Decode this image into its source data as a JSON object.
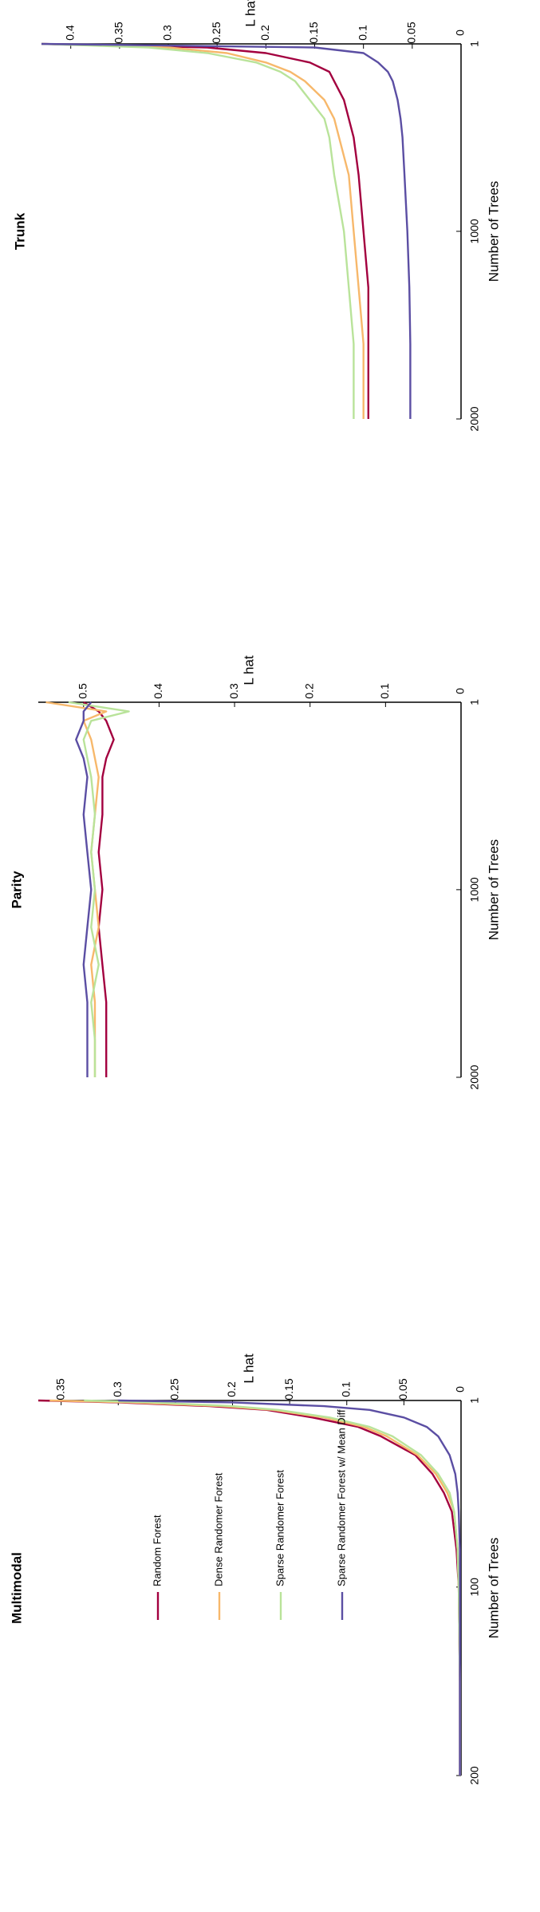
{
  "colors": {
    "random_forest": "#a3003f",
    "dense_randomer_forest": "#f7b86b",
    "sparse_randomer_forest": "#b9e39a",
    "sparse_randomer_forest_mean_diff": "#5b4ea3",
    "axis": "#000000"
  },
  "legend": {
    "placement": "right",
    "entries": [
      {
        "label": "Random Forest",
        "series_key": "random_forest"
      },
      {
        "label": "Dense Randomer Forest",
        "series_key": "dense_randomer_forest"
      },
      {
        "label": "Sparse Randomer Forest",
        "series_key": "sparse_randomer_forest"
      },
      {
        "label": "Sparse Randomer Forest w/ Mean Diff",
        "series_key": "sparse_randomer_forest_mean_diff"
      }
    ]
  },
  "chart_data": [
    {
      "type": "line",
      "title": "Trunk",
      "xlabel": "Number of Trees",
      "ylabel": "L hat",
      "xlim": [
        1,
        2000
      ],
      "ylim": [
        0,
        0.43
      ],
      "xticks": [
        1,
        1000,
        2000
      ],
      "xtick_labels": [
        "1",
        "1000",
        "2000"
      ],
      "yticks": [
        0,
        0.05,
        0.1,
        0.15,
        0.2,
        0.25,
        0.3,
        0.35,
        0.4
      ],
      "ytick_labels": [
        "0",
        "0.05",
        "0.1",
        "0.15",
        "0.2",
        "0.25",
        "0.3",
        "0.35",
        "0.4"
      ],
      "grid": false,
      "series": [
        {
          "key": "random_forest",
          "name": "Random Forest",
          "x": [
            1,
            20,
            50,
            100,
            150,
            200,
            300,
            400,
            500,
            700,
            1000,
            1300,
            1600,
            2000
          ],
          "y": [
            0.43,
            0.26,
            0.2,
            0.155,
            0.135,
            0.13,
            0.12,
            0.115,
            0.11,
            0.105,
            0.1,
            0.095,
            0.095,
            0.095
          ]
        },
        {
          "key": "dense_randomer_forest",
          "name": "Dense Randomer Forest",
          "x": [
            1,
            20,
            50,
            100,
            150,
            200,
            300,
            400,
            500,
            700,
            1000,
            1300,
            1600,
            2000
          ],
          "y": [
            0.43,
            0.3,
            0.24,
            0.2,
            0.175,
            0.16,
            0.14,
            0.13,
            0.125,
            0.115,
            0.11,
            0.105,
            0.1,
            0.1
          ]
        },
        {
          "key": "sparse_randomer_forest",
          "name": "Sparse Randomer Forest",
          "x": [
            1,
            20,
            50,
            100,
            150,
            200,
            300,
            400,
            500,
            700,
            1000,
            1300,
            1600,
            2000
          ],
          "y": [
            0.43,
            0.32,
            0.26,
            0.21,
            0.185,
            0.17,
            0.155,
            0.14,
            0.135,
            0.13,
            0.12,
            0.115,
            0.11,
            0.11
          ]
        },
        {
          "key": "sparse_randomer_forest_mean_diff",
          "name": "Sparse Randomer Forest w/ Mean Diff",
          "x": [
            1,
            20,
            50,
            100,
            150,
            200,
            300,
            400,
            500,
            700,
            1000,
            1300,
            1600,
            2000
          ],
          "y": [
            0.43,
            0.15,
            0.1,
            0.085,
            0.075,
            0.07,
            0.065,
            0.062,
            0.06,
            0.058,
            0.055,
            0.053,
            0.052,
            0.052
          ]
        }
      ]
    },
    {
      "type": "line",
      "title": "Parity",
      "xlabel": "Number of Trees",
      "ylabel": "L hat",
      "xlim": [
        1,
        2000
      ],
      "ylim": [
        0,
        0.56
      ],
      "xticks": [
        1,
        1000,
        2000
      ],
      "xtick_labels": [
        "1",
        "1000",
        "2000"
      ],
      "yticks": [
        0,
        0.1,
        0.2,
        0.3,
        0.4,
        0.5
      ],
      "ytick_labels": [
        "0",
        "0.1",
        "0.2",
        "0.3",
        "0.4",
        "0.5"
      ],
      "grid": false,
      "series": [
        {
          "key": "random_forest",
          "name": "Random Forest",
          "x": [
            1,
            50,
            100,
            200,
            300,
            400,
            600,
            800,
            1000,
            1200,
            1400,
            1600,
            1800,
            2000
          ],
          "y": [
            0.5,
            0.48,
            0.47,
            0.46,
            0.47,
            0.475,
            0.475,
            0.48,
            0.475,
            0.48,
            0.475,
            0.47,
            0.47,
            0.47
          ]
        },
        {
          "key": "dense_randomer_forest",
          "name": "Dense Randomer Forest",
          "x": [
            1,
            50,
            100,
            200,
            300,
            400,
            600,
            800,
            1000,
            1200,
            1400,
            1600,
            1800,
            2000
          ],
          "y": [
            0.55,
            0.47,
            0.5,
            0.49,
            0.485,
            0.48,
            0.485,
            0.49,
            0.485,
            0.48,
            0.49,
            0.485,
            0.485,
            0.485
          ]
        },
        {
          "key": "sparse_randomer_forest",
          "name": "Sparse Randomer Forest",
          "x": [
            1,
            50,
            100,
            200,
            300,
            400,
            600,
            800,
            1000,
            1200,
            1400,
            1600,
            1800,
            2000
          ],
          "y": [
            0.52,
            0.44,
            0.49,
            0.5,
            0.495,
            0.49,
            0.485,
            0.49,
            0.485,
            0.49,
            0.48,
            0.49,
            0.485,
            0.485
          ]
        },
        {
          "key": "sparse_randomer_forest_mean_diff",
          "name": "Sparse Randomer Forest w/ Mean Diff",
          "x": [
            1,
            50,
            100,
            200,
            300,
            400,
            600,
            800,
            1000,
            1200,
            1400,
            1600,
            1800,
            2000
          ],
          "y": [
            0.49,
            0.5,
            0.5,
            0.51,
            0.5,
            0.495,
            0.5,
            0.495,
            0.49,
            0.495,
            0.5,
            0.495,
            0.495,
            0.495
          ]
        }
      ]
    },
    {
      "type": "line",
      "title": "Multimodal",
      "xlabel": "Number of Trees",
      "ylabel": "L hat",
      "xlim": [
        1,
        200
      ],
      "ylim": [
        0,
        0.37
      ],
      "xticks": [
        1,
        100,
        200
      ],
      "xtick_labels": [
        "1",
        "100",
        "200"
      ],
      "yticks": [
        0,
        0.05,
        0.1,
        0.15,
        0.2,
        0.25,
        0.3,
        0.35
      ],
      "ytick_labels": [
        "0",
        "0.05",
        "0.1",
        "0.15",
        "0.2",
        "0.25",
        "0.3",
        "0.35"
      ],
      "grid": false,
      "series": [
        {
          "key": "random_forest",
          "name": "Random Forest",
          "x": [
            1,
            2,
            4,
            6,
            10,
            15,
            20,
            30,
            40,
            50,
            60,
            80,
            100,
            150,
            200
          ],
          "y": [
            0.37,
            0.3,
            0.22,
            0.17,
            0.13,
            0.09,
            0.07,
            0.04,
            0.025,
            0.015,
            0.008,
            0.004,
            0.002,
            0.001,
            0.001
          ]
        },
        {
          "key": "dense_randomer_forest",
          "name": "Dense Randomer Forest",
          "x": [
            1,
            2,
            4,
            6,
            10,
            15,
            20,
            30,
            40,
            50,
            60,
            80,
            100,
            150,
            200
          ],
          "y": [
            0.36,
            0.29,
            0.21,
            0.165,
            0.12,
            0.085,
            0.065,
            0.038,
            0.022,
            0.012,
            0.006,
            0.003,
            0.002,
            0.001,
            0.001
          ]
        },
        {
          "key": "sparse_randomer_forest",
          "name": "Sparse Randomer Forest",
          "x": [
            1,
            2,
            4,
            6,
            10,
            15,
            20,
            30,
            40,
            50,
            60,
            80,
            100,
            150,
            200
          ],
          "y": [
            0.33,
            0.27,
            0.2,
            0.16,
            0.115,
            0.08,
            0.06,
            0.035,
            0.02,
            0.01,
            0.006,
            0.003,
            0.002,
            0.001,
            0.001
          ]
        },
        {
          "key": "sparse_randomer_forest_mean_diff",
          "name": "Sparse Randomer Forest w/ Mean Diff",
          "x": [
            1,
            2,
            4,
            6,
            10,
            15,
            20,
            30,
            40,
            50,
            60,
            80,
            100,
            150,
            200
          ],
          "y": [
            0.3,
            0.2,
            0.12,
            0.08,
            0.05,
            0.03,
            0.02,
            0.01,
            0.005,
            0.003,
            0.002,
            0.001,
            0.001,
            0.001,
            0.001
          ]
        }
      ]
    }
  ]
}
